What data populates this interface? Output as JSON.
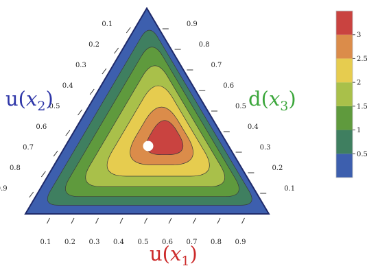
{
  "chart_data": {
    "type": "ternary-contour",
    "axes": {
      "bottom": {
        "label_prefix": "u(",
        "label_var": "x",
        "label_sub": "1",
        "label_suffix": ")",
        "color": "#cc2a2a"
      },
      "left": {
        "label_prefix": "u(",
        "label_var": "x",
        "label_sub": "2",
        "label_suffix": ")",
        "color": "#2e36a8"
      },
      "right": {
        "label_prefix": "d(",
        "label_var": "x",
        "label_sub": "3",
        "label_suffix": ")",
        "color": "#3aa63a"
      }
    },
    "ticks": {
      "bottom": [
        "0.1",
        "0.2",
        "0.3",
        "0.4",
        "0.5",
        "0.6",
        "0.7",
        "0.8",
        "0.9"
      ],
      "left": [
        "0.1",
        "0.2",
        "0.3",
        "0.4",
        "0.5",
        "0.6",
        "0.7",
        "0.8",
        "0.9"
      ],
      "right": [
        "0.1",
        "0.2",
        "0.3",
        "0.4",
        "0.5",
        "0.6",
        "0.7",
        "0.8",
        "0.9"
      ]
    },
    "contour_levels": [
      0,
      0.5,
      1,
      1.5,
      2,
      2.5,
      3,
      3.5
    ],
    "contour_colors": [
      "#3d5fae",
      "#3f7f60",
      "#5f9a3d",
      "#a9c04a",
      "#e6cc4f",
      "#db8c4a",
      "#c94340"
    ],
    "colorbar": {
      "ticks": [
        "0.5",
        "1",
        "1.5",
        "2",
        "2.5",
        "3"
      ],
      "range": [
        0,
        3.5
      ]
    },
    "marker": {
      "x1": 0.33,
      "x2": 0.33,
      "x3": 0.34,
      "color": "#ffffff"
    },
    "grid": false
  }
}
